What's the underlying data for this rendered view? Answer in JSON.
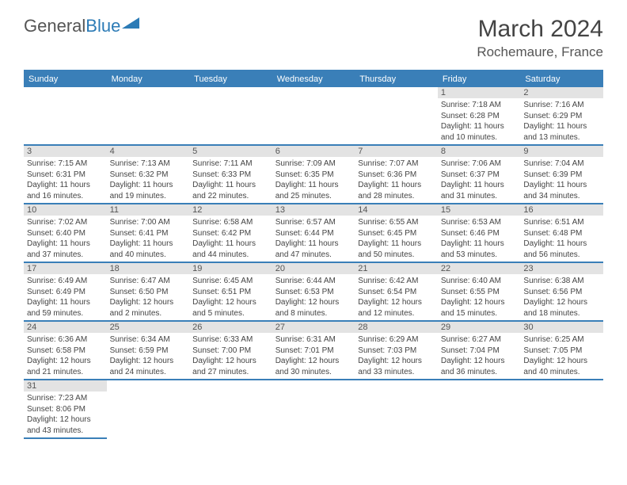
{
  "logo": {
    "general": "General",
    "blue": "Blue"
  },
  "title": "March 2024",
  "location": "Rochemaure, France",
  "colors": {
    "header_bg": "#3a7fb8",
    "header_text": "#ffffff",
    "daynum_bg": "#e3e3e3",
    "border": "#3a7fb8",
    "text": "#444444"
  },
  "weekdays": [
    "Sunday",
    "Monday",
    "Tuesday",
    "Wednesday",
    "Thursday",
    "Friday",
    "Saturday"
  ],
  "weeks": [
    [
      null,
      null,
      null,
      null,
      null,
      {
        "n": "1",
        "sr": "7:18 AM",
        "ss": "6:28 PM",
        "dl": "11 hours and 10 minutes."
      },
      {
        "n": "2",
        "sr": "7:16 AM",
        "ss": "6:29 PM",
        "dl": "11 hours and 13 minutes."
      }
    ],
    [
      {
        "n": "3",
        "sr": "7:15 AM",
        "ss": "6:31 PM",
        "dl": "11 hours and 16 minutes."
      },
      {
        "n": "4",
        "sr": "7:13 AM",
        "ss": "6:32 PM",
        "dl": "11 hours and 19 minutes."
      },
      {
        "n": "5",
        "sr": "7:11 AM",
        "ss": "6:33 PM",
        "dl": "11 hours and 22 minutes."
      },
      {
        "n": "6",
        "sr": "7:09 AM",
        "ss": "6:35 PM",
        "dl": "11 hours and 25 minutes."
      },
      {
        "n": "7",
        "sr": "7:07 AM",
        "ss": "6:36 PM",
        "dl": "11 hours and 28 minutes."
      },
      {
        "n": "8",
        "sr": "7:06 AM",
        "ss": "6:37 PM",
        "dl": "11 hours and 31 minutes."
      },
      {
        "n": "9",
        "sr": "7:04 AM",
        "ss": "6:39 PM",
        "dl": "11 hours and 34 minutes."
      }
    ],
    [
      {
        "n": "10",
        "sr": "7:02 AM",
        "ss": "6:40 PM",
        "dl": "11 hours and 37 minutes."
      },
      {
        "n": "11",
        "sr": "7:00 AM",
        "ss": "6:41 PM",
        "dl": "11 hours and 40 minutes."
      },
      {
        "n": "12",
        "sr": "6:58 AM",
        "ss": "6:42 PM",
        "dl": "11 hours and 44 minutes."
      },
      {
        "n": "13",
        "sr": "6:57 AM",
        "ss": "6:44 PM",
        "dl": "11 hours and 47 minutes."
      },
      {
        "n": "14",
        "sr": "6:55 AM",
        "ss": "6:45 PM",
        "dl": "11 hours and 50 minutes."
      },
      {
        "n": "15",
        "sr": "6:53 AM",
        "ss": "6:46 PM",
        "dl": "11 hours and 53 minutes."
      },
      {
        "n": "16",
        "sr": "6:51 AM",
        "ss": "6:48 PM",
        "dl": "11 hours and 56 minutes."
      }
    ],
    [
      {
        "n": "17",
        "sr": "6:49 AM",
        "ss": "6:49 PM",
        "dl": "11 hours and 59 minutes."
      },
      {
        "n": "18",
        "sr": "6:47 AM",
        "ss": "6:50 PM",
        "dl": "12 hours and 2 minutes."
      },
      {
        "n": "19",
        "sr": "6:45 AM",
        "ss": "6:51 PM",
        "dl": "12 hours and 5 minutes."
      },
      {
        "n": "20",
        "sr": "6:44 AM",
        "ss": "6:53 PM",
        "dl": "12 hours and 8 minutes."
      },
      {
        "n": "21",
        "sr": "6:42 AM",
        "ss": "6:54 PM",
        "dl": "12 hours and 12 minutes."
      },
      {
        "n": "22",
        "sr": "6:40 AM",
        "ss": "6:55 PM",
        "dl": "12 hours and 15 minutes."
      },
      {
        "n": "23",
        "sr": "6:38 AM",
        "ss": "6:56 PM",
        "dl": "12 hours and 18 minutes."
      }
    ],
    [
      {
        "n": "24",
        "sr": "6:36 AM",
        "ss": "6:58 PM",
        "dl": "12 hours and 21 minutes."
      },
      {
        "n": "25",
        "sr": "6:34 AM",
        "ss": "6:59 PM",
        "dl": "12 hours and 24 minutes."
      },
      {
        "n": "26",
        "sr": "6:33 AM",
        "ss": "7:00 PM",
        "dl": "12 hours and 27 minutes."
      },
      {
        "n": "27",
        "sr": "6:31 AM",
        "ss": "7:01 PM",
        "dl": "12 hours and 30 minutes."
      },
      {
        "n": "28",
        "sr": "6:29 AM",
        "ss": "7:03 PM",
        "dl": "12 hours and 33 minutes."
      },
      {
        "n": "29",
        "sr": "6:27 AM",
        "ss": "7:04 PM",
        "dl": "12 hours and 36 minutes."
      },
      {
        "n": "30",
        "sr": "6:25 AM",
        "ss": "7:05 PM",
        "dl": "12 hours and 40 minutes."
      }
    ],
    [
      {
        "n": "31",
        "sr": "7:23 AM",
        "ss": "8:06 PM",
        "dl": "12 hours and 43 minutes."
      },
      null,
      null,
      null,
      null,
      null,
      null
    ]
  ],
  "labels": {
    "sunrise": "Sunrise:",
    "sunset": "Sunset:",
    "daylight": "Daylight:"
  }
}
